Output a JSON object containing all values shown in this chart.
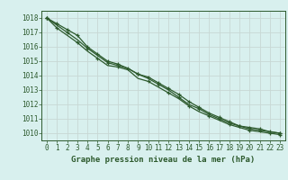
{
  "background_color": "#d8f0ee",
  "grid_color": "#c8d8d4",
  "line_color": "#2d5a2d",
  "title": "Graphe pression niveau de la mer (hPa)",
  "xlim_min": -0.5,
  "xlim_max": 23.5,
  "ylim": [
    1009.5,
    1018.5
  ],
  "yticks": [
    1010,
    1011,
    1012,
    1013,
    1014,
    1015,
    1016,
    1017,
    1018
  ],
  "xticks": [
    0,
    1,
    2,
    3,
    4,
    5,
    6,
    7,
    8,
    9,
    10,
    11,
    12,
    13,
    14,
    15,
    16,
    17,
    18,
    19,
    20,
    21,
    22,
    23
  ],
  "series": [
    [
      1018.0,
      1017.6,
      1017.2,
      1016.8,
      1016.0,
      1015.5,
      1015.0,
      1014.8,
      1014.5,
      1014.1,
      1013.9,
      1013.5,
      1013.1,
      1012.7,
      1012.2,
      1011.8,
      1011.4,
      1011.1,
      1010.8,
      1010.5,
      1010.4,
      1010.3,
      1010.1,
      1010.0
    ],
    [
      1018.0,
      1017.5,
      1017.0,
      1016.5,
      1015.9,
      1015.4,
      1014.9,
      1014.7,
      1014.5,
      1014.1,
      1013.8,
      1013.4,
      1013.0,
      1012.5,
      1012.0,
      1011.7,
      1011.3,
      1011.0,
      1010.7,
      1010.5,
      1010.3,
      1010.2,
      1010.1,
      1010.0
    ],
    [
      1018.0,
      1017.3,
      1016.8,
      1016.3,
      1015.7,
      1015.2,
      1014.7,
      1014.6,
      1014.4,
      1013.8,
      1013.6,
      1013.2,
      1012.8,
      1012.4,
      1011.9,
      1011.5,
      1011.2,
      1010.9,
      1010.6,
      1010.4,
      1010.2,
      1010.1,
      1010.0,
      1009.9
    ]
  ],
  "marker_x_all": [
    0,
    1,
    2,
    3,
    4,
    5,
    6,
    7,
    8,
    9,
    10,
    11,
    12,
    13,
    14,
    15,
    16,
    17,
    18,
    19,
    20,
    21,
    22,
    23
  ],
  "marker_y_top": [
    1018.0,
    1017.6,
    1017.2,
    1016.8,
    1016.0,
    1015.5,
    1015.0,
    1014.8,
    1014.5,
    1014.1,
    1013.9,
    1013.5,
    1013.1,
    1012.7,
    1012.2,
    1011.8,
    1011.4,
    1011.1,
    1010.8,
    1010.5,
    1010.4,
    1010.3,
    1010.1,
    1010.0
  ],
  "marker_x_sparse1": [
    0,
    2,
    4,
    6,
    9,
    11,
    13,
    15,
    17,
    19,
    21,
    23
  ],
  "marker_y_sparse1": [
    1018.0,
    1017.0,
    1015.9,
    1014.9,
    1014.1,
    1013.4,
    1012.5,
    1011.7,
    1011.0,
    1010.5,
    1010.2,
    1010.0
  ],
  "marker_x_sparse2": [
    0,
    1,
    3,
    5,
    7,
    10,
    12,
    14,
    16,
    18,
    20,
    22,
    23
  ],
  "marker_y_sparse2": [
    1018.0,
    1017.3,
    1016.3,
    1015.2,
    1014.6,
    1013.6,
    1012.8,
    1011.9,
    1011.2,
    1010.6,
    1010.2,
    1010.0,
    1009.9
  ],
  "tick_fontsize": 5.5,
  "title_fontsize": 6.5
}
